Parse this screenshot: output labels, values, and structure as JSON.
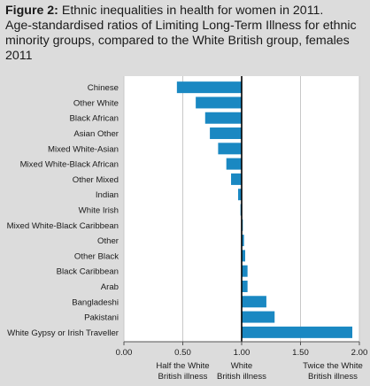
{
  "figure": {
    "label": "Figure 2:",
    "title": "Ethnic inequalities in health for women in 2011.",
    "subtitle": "Age-standardised ratios of Limiting Long-Term Illness for ethnic minority groups, compared to the White British group, females 2011"
  },
  "colors": {
    "background": "#dcdcdc",
    "plot_background": "#ffffff",
    "bar": "#1a88c2",
    "reference_line": "#000000",
    "grid": "#c8c8c8"
  },
  "chart_data": {
    "type": "bar",
    "orientation": "horizontal",
    "categories": [
      "Chinese",
      "Other White",
      "Black African",
      "Asian Other",
      "Mixed White-Asian",
      "Mixed White-Black African",
      "Other Mixed",
      "Indian",
      "White Irish",
      "Mixed White-Black Caribbean",
      "Other",
      "Other Black",
      "Black Caribbean",
      "Arab",
      "Bangladeshi",
      "Pakistani",
      "White Gypsy or Irish Traveller"
    ],
    "values": [
      0.45,
      0.61,
      0.69,
      0.73,
      0.8,
      0.87,
      0.91,
      0.97,
      0.99,
      1.01,
      1.02,
      1.03,
      1.05,
      1.05,
      1.21,
      1.28,
      1.94
    ],
    "reference_value": 1.0,
    "xlim": [
      0,
      2.0
    ],
    "xticks": [
      {
        "value": 0.0,
        "label": "0.00"
      },
      {
        "value": 0.5,
        "label": "0.50"
      },
      {
        "value": 1.0,
        "label": "1.00"
      },
      {
        "value": 1.5,
        "label": "1.50"
      },
      {
        "value": 2.0,
        "label": "2.00"
      }
    ],
    "annotations": [
      {
        "value": 0.5,
        "lines": [
          "Half the White",
          "British illness"
        ]
      },
      {
        "value": 1.0,
        "lines": [
          "White",
          "British illness"
        ]
      },
      {
        "value": 2.0,
        "lines": [
          "Twice the White",
          "British illness"
        ]
      }
    ],
    "grid": true
  }
}
